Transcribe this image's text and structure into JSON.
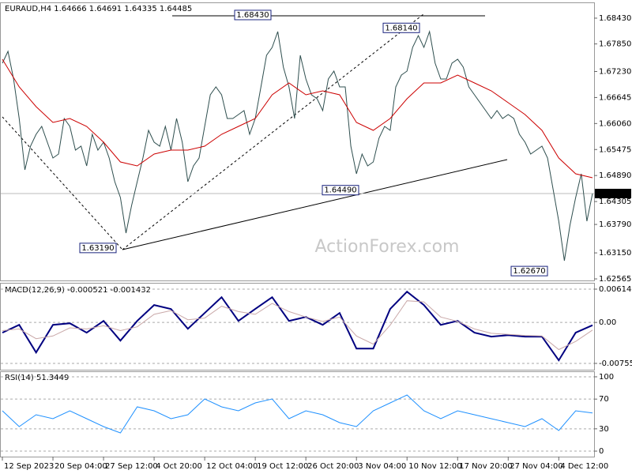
{
  "chart_data": [
    {
      "type": "line",
      "title": "EURAUD,H4 1.64666 1.64691 1.64335 1.64485",
      "watermark": "ActionForex.com",
      "categories": [
        "12 Sep 2023",
        null,
        null,
        null,
        null,
        null,
        null,
        null,
        null,
        "20 Sep 04:00",
        null,
        null,
        null,
        null,
        null,
        null,
        null,
        null,
        "27 Sep 12:00",
        null,
        null,
        null,
        null,
        null,
        null,
        null,
        null,
        "4 Oct 20:00",
        null,
        null,
        null,
        null,
        null,
        null,
        null,
        null,
        "12 Oct 04:00",
        null,
        null,
        null,
        null,
        null,
        null,
        null,
        null,
        "19 Oct 12:00",
        null,
        null,
        null,
        null,
        null,
        null,
        null,
        null,
        "26 Oct 20:00",
        null,
        null,
        null,
        null,
        null,
        null,
        null,
        null,
        "3 Nov 04:00",
        null,
        null,
        null,
        null,
        null,
        null,
        null,
        null,
        "10 Nov 12:00",
        null,
        null,
        null,
        null,
        null,
        null,
        null,
        null,
        "17 Nov 20:00",
        null,
        null,
        null,
        null,
        null,
        null,
        null,
        null,
        "27 Nov 04:00",
        null,
        null,
        null,
        null,
        null,
        null,
        null,
        null,
        "4 Dec 12:00",
        null,
        null,
        null,
        null,
        null,
        null
      ],
      "xlim": [
        0,
        105
      ],
      "series": [
        {
          "color": "#2f4f4f",
          "values": [
            1.67417,
            1.67684,
            1.67062,
            1.66173,
            1.65018,
            1.65551,
            1.65818,
            1.65996,
            1.6564,
            1.65285,
            1.65374,
            1.66173,
            1.65996,
            1.65462,
            1.65551,
            1.65107,
            1.65818,
            1.65462,
            1.6564,
            1.65285,
            1.64752,
            1.64396,
            1.63597,
            1.64219,
            1.64752,
            1.65285,
            1.65907,
            1.6564,
            1.65551,
            1.65996,
            1.65462,
            1.66173,
            1.6564,
            1.64752,
            1.65107,
            1.65285,
            1.65996,
            1.66706,
            1.66884,
            1.66706,
            1.66173,
            1.66173,
            1.66262,
            1.66351,
            1.65818,
            1.66173,
            1.66884,
            1.67595,
            1.67773,
            1.68128,
            1.67328,
            1.66884,
            1.66173,
            1.67595,
            1.67062,
            1.66706,
            1.66617,
            1.66351,
            1.67062,
            1.67239,
            1.66884,
            1.66884,
            1.65551,
            1.64929,
            1.65374,
            1.65107,
            1.65196,
            1.65729,
            1.65996,
            1.65907,
            1.66884,
            1.67151,
            1.67239,
            1.67773,
            1.68039,
            1.67773,
            1.68128,
            1.67417,
            1.67062,
            1.67062,
            1.67417,
            1.67506,
            1.67328,
            1.66884,
            1.66706,
            1.66529,
            1.66351,
            1.66173,
            1.66351,
            1.66173,
            1.66262,
            1.66173,
            1.65818,
            1.6564,
            1.65374,
            1.65462,
            1.65551,
            1.65285,
            1.64574,
            1.63863,
            1.62975,
            1.63774,
            1.64396,
            1.64929,
            1.63863,
            1.64485
          ]
        },
        {
          "color": "#cc0000",
          "x": [
            0,
            3,
            6,
            9,
            12,
            15,
            18,
            21,
            24,
            27,
            30,
            33,
            36,
            39,
            42,
            45,
            48,
            51,
            54,
            57,
            60,
            63,
            66,
            69,
            72,
            75,
            78,
            81,
            84,
            87,
            90,
            93,
            96,
            99,
            102,
            105
          ],
          "values": [
            1.67506,
            1.66884,
            1.6644,
            1.66084,
            1.66173,
            1.65996,
            1.6564,
            1.65196,
            1.65107,
            1.65374,
            1.65462,
            1.65462,
            1.65551,
            1.65818,
            1.65996,
            1.66173,
            1.66706,
            1.66973,
            1.66706,
            1.66795,
            1.66706,
            1.66084,
            1.65907,
            1.66173,
            1.66617,
            1.66973,
            1.66973,
            1.67151,
            1.66973,
            1.66795,
            1.66529,
            1.66262,
            1.65907,
            1.65285,
            1.64929,
            1.6484
          ]
        }
      ],
      "ylim": [
        1.6253,
        1.68785
      ],
      "yticks": [
        {
          "value": 1.6843,
          "label": "1.68430"
        },
        {
          "value": 1.6785,
          "label": "1.67850"
        },
        {
          "value": 1.6723,
          "label": "1.67230"
        },
        {
          "value": 1.66645,
          "label": "1.66645"
        },
        {
          "value": 1.6606,
          "label": "1.66060"
        },
        {
          "value": 1.65475,
          "label": "1.65475"
        },
        {
          "value": 1.6489,
          "label": "1.64890"
        },
        {
          "value": 1.64305,
          "label": "1.64305"
        },
        {
          "value": 1.6379,
          "label": "1.63790"
        },
        {
          "value": 1.6315,
          "label": "1.63150"
        },
        {
          "value": 1.62565,
          "label": "1.62565"
        }
      ],
      "annotations": [
        {
          "value": 1.6843,
          "label": "1.68430"
        },
        {
          "value": 1.6814,
          "label": "1.68140"
        },
        {
          "value": 1.6449,
          "label": "1.64490"
        },
        {
          "value": 1.6319,
          "label": "1.63190"
        },
        {
          "value": 1.6267,
          "label": "1.62670"
        }
      ],
      "last_price": {
        "value": 1.64485,
        "label": "1.64485"
      }
    },
    {
      "type": "line",
      "title": "MACD(12,26,9) -0.000521 -0.001432",
      "xlim": [
        0,
        105
      ],
      "x": [
        0,
        3,
        6,
        9,
        12,
        15,
        18,
        21,
        24,
        27,
        30,
        33,
        36,
        39,
        42,
        45,
        48,
        51,
        54,
        57,
        60,
        63,
        66,
        69,
        72,
        75,
        78,
        81,
        84,
        87,
        90,
        93,
        96,
        99,
        102,
        105
      ],
      "series": [
        {
          "color": "#000080",
          "values": [
            -0.00189,
            -0.00044,
            -0.00554,
            -0.00044,
            -0.00015,
            -0.00189,
            0.00029,
            -0.00335,
            0.00029,
            0.00321,
            0.00248,
            -0.00117,
            0.00175,
            0.00466,
            0.00029,
            0.00248,
            0.00466,
            0.00029,
            0.00102,
            -0.00044,
            0.00175,
            -0.00481,
            -0.00481,
            0.00248,
            0.00568,
            0.00321,
            -0.00044,
            0.00029,
            -0.00189,
            -0.00262,
            -0.00233,
            -0.00262,
            -0.00262,
            -0.00699,
            -0.00189,
            -0.00052
          ]
        },
        {
          "color": "#c9a8a8",
          "values": [
            -0.0015,
            -0.0012,
            -0.003,
            -0.0025,
            -0.001,
            -0.0012,
            -0.0006,
            -0.0015,
            -0.0008,
            0.0015,
            0.0022,
            0.0005,
            0.0008,
            0.003,
            0.002,
            0.0015,
            0.0035,
            0.002,
            0.001,
            0.0002,
            0.001,
            -0.0025,
            -0.004,
            -0.0005,
            0.004,
            0.0038,
            0.001,
            0.0002,
            -0.0012,
            -0.002,
            -0.0022,
            -0.0024,
            -0.0025,
            -0.005,
            -0.0035,
            -0.0014
          ]
        }
      ],
      "ylim": [
        -0.00872,
        0.00731
      ],
      "yticks": [
        0.006144,
        {
          "value": 0,
          "label": "0.00"
        },
        -0.007555
      ],
      "grid": true
    },
    {
      "type": "line",
      "title": "RSI(14) 51.3449",
      "xlim": [
        0,
        105
      ],
      "x": [
        0,
        3,
        6,
        9,
        12,
        15,
        18,
        21,
        24,
        27,
        30,
        33,
        36,
        39,
        42,
        45,
        48,
        51,
        54,
        57,
        60,
        63,
        66,
        69,
        72,
        75,
        78,
        81,
        84,
        87,
        90,
        93,
        96,
        99,
        102,
        105
      ],
      "series": [
        {
          "color": "#1e90ff",
          "values": [
            54.3,
            33.0,
            48.9,
            43.6,
            54.3,
            43.6,
            33.0,
            24.5,
            59.6,
            54.3,
            43.6,
            48.9,
            70.2,
            59.6,
            54.3,
            64.9,
            70.2,
            43.6,
            54.3,
            48.9,
            38.3,
            33.0,
            54.3,
            64.9,
            75.5,
            54.3,
            43.6,
            54.3,
            48.9,
            43.6,
            38.3,
            33.0,
            43.6,
            27.7,
            54.3,
            51.3
          ]
        }
      ],
      "ylim": [
        -7.4,
        107.4
      ],
      "yticks": [
        100,
        70,
        30,
        0
      ],
      "grid": true
    }
  ]
}
